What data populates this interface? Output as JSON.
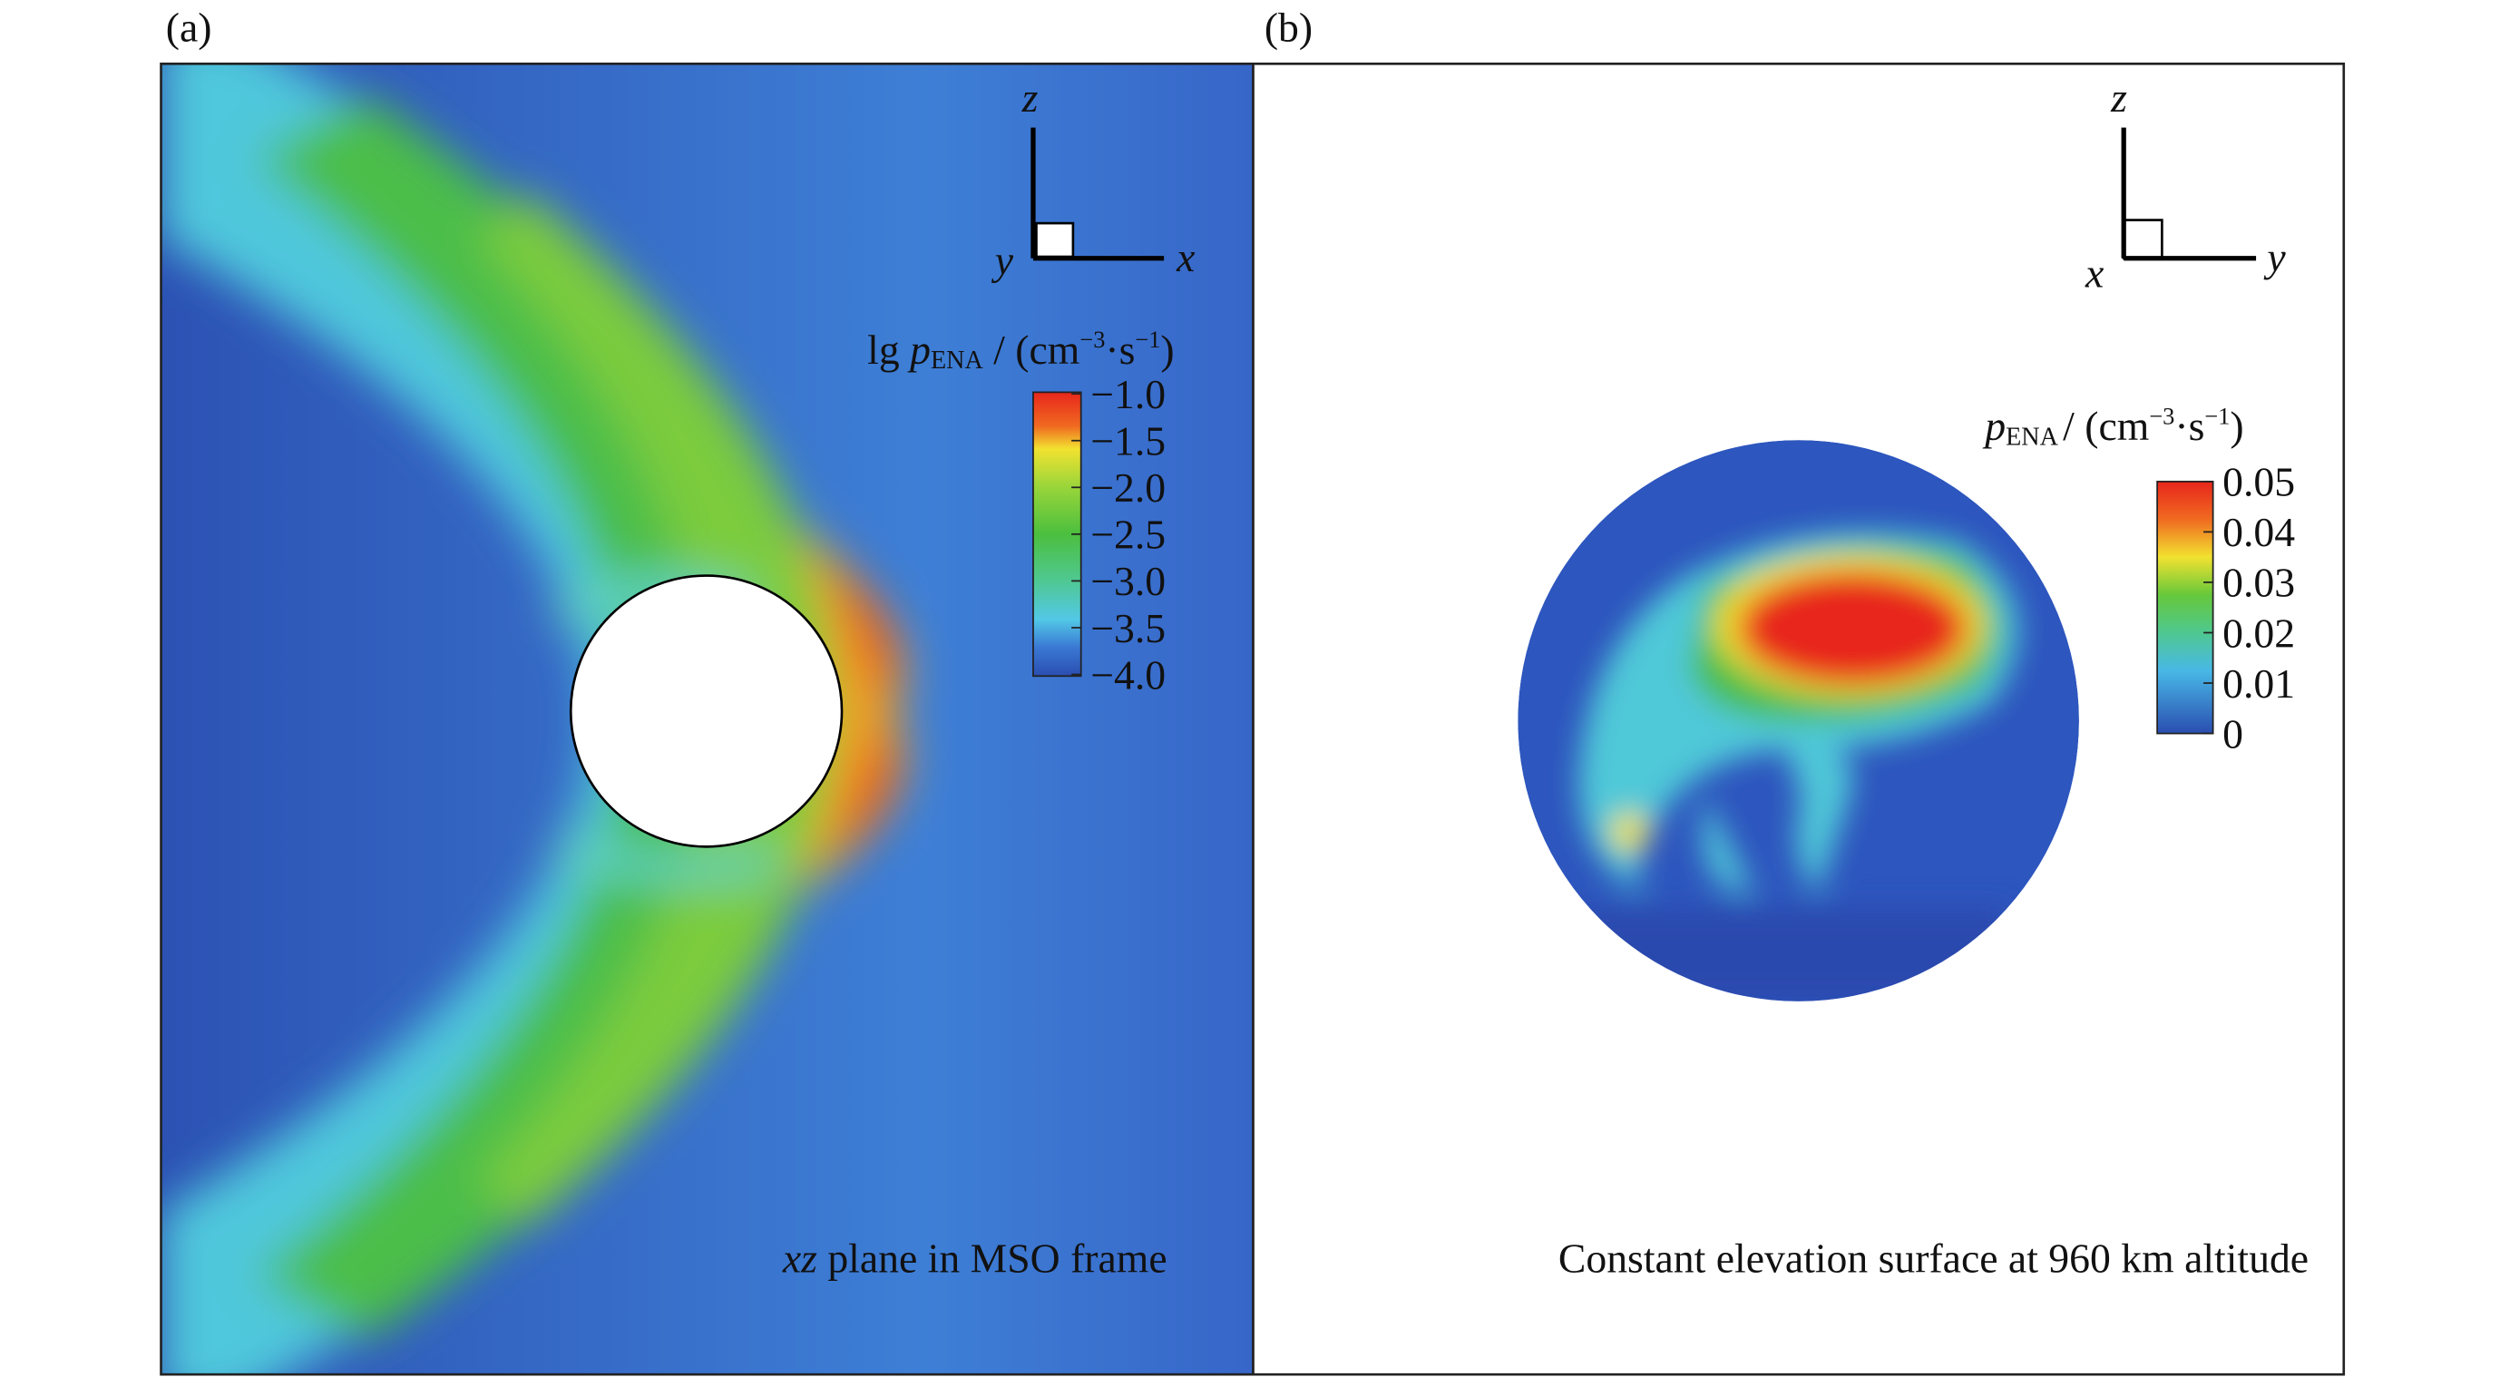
{
  "panels": [
    {
      "label": "(a)",
      "axes": {
        "vertical": "z",
        "depth": "y",
        "horizontal": "x"
      },
      "colorbar": {
        "title_parts": [
          "lg ",
          "p",
          "ENA",
          " / (cm",
          "−3",
          "·s",
          "−1",
          ")"
        ],
        "ticks": [
          "−1.0",
          "−1.5",
          "−2.0",
          "−2.5",
          "−3.0",
          "−3.5",
          "−4.0"
        ]
      },
      "caption_parts": [
        "xz",
        " plane in MSO frame"
      ]
    },
    {
      "label": "(b)",
      "axes": {
        "vertical": "z",
        "depth": "x",
        "horizontal": "y"
      },
      "colorbar": {
        "title_parts": [
          "p",
          "ENA",
          "/  (cm",
          "−3",
          "·s",
          "−1",
          ")"
        ],
        "ticks": [
          "0.05",
          "0.04",
          "0.03",
          "0.02",
          "0.01",
          "0"
        ]
      },
      "caption_parts": [
        "Constant elevation surface at 960 km altitude"
      ]
    }
  ]
}
